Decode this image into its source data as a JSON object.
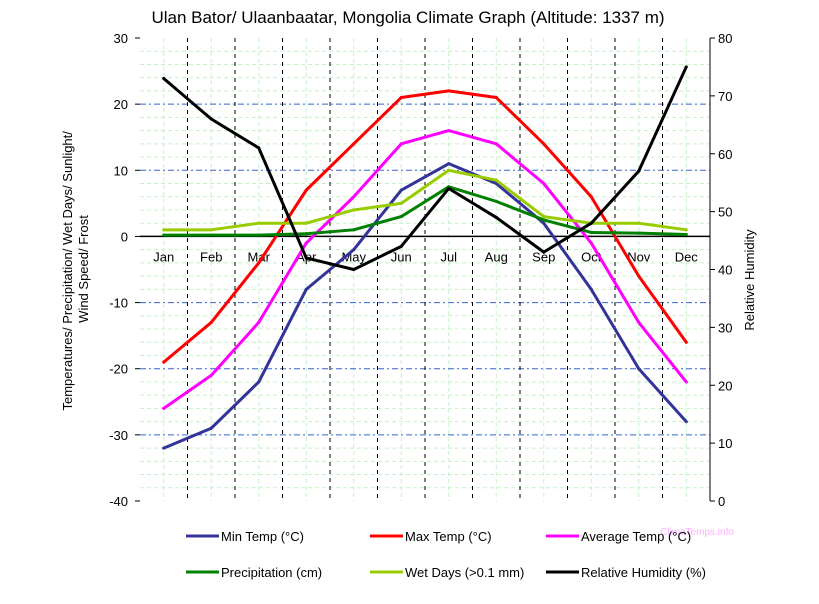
{
  "chart_data": {
    "type": "line",
    "title": "Ulan Bator/ Ulaanbaatar, Mongolia Climate Graph (Altitude: 1337 m)",
    "ylabel_left": "Temperatures/ Precipitation/ Wet Days/ Sunlight/ Wind Speed/ Frost",
    "ylabel_right": "Relative Humidity",
    "watermark": "ClimaTemps.info",
    "categories": [
      "Jan",
      "Feb",
      "Mar",
      "Apr",
      "May",
      "Jun",
      "Jul",
      "Aug",
      "Sep",
      "Oct",
      "Nov",
      "Dec"
    ],
    "y_left": {
      "min": -40,
      "max": 30,
      "step": 10,
      "ticks": [
        "30",
        "20",
        "10",
        "0",
        "-10",
        "-20",
        "-30",
        "-40"
      ]
    },
    "y_right": {
      "min": 0,
      "max": 80,
      "step": 10,
      "ticks": [
        "80",
        "70",
        "60",
        "50",
        "40",
        "30",
        "20",
        "10",
        "0"
      ]
    },
    "grid": true,
    "legend_position": "bottom",
    "series": [
      {
        "name": "Min Temp (°C)",
        "axis": "left",
        "color": "#333399",
        "values": [
          -32,
          -29,
          -22,
          -8,
          -2,
          7,
          11,
          8,
          2,
          -8,
          -20,
          -28
        ]
      },
      {
        "name": "Max Temp (°C)",
        "axis": "left",
        "color": "#ff0000",
        "values": [
          -19,
          -13,
          -4,
          7,
          14,
          21,
          22,
          21,
          14,
          6,
          -6,
          -16
        ]
      },
      {
        "name": "Average Temp (°C)",
        "axis": "left",
        "color": "#ff00ff",
        "values": [
          -26,
          -21,
          -13,
          -1,
          6,
          14,
          16,
          14,
          8,
          -1,
          -13,
          -22
        ]
      },
      {
        "name": "Precipitation (cm)",
        "axis": "left",
        "color": "#008000",
        "values": [
          0.2,
          0.2,
          0.2,
          0.4,
          1,
          3,
          7.5,
          5.3,
          2.5,
          0.6,
          0.5,
          0.3
        ]
      },
      {
        "name": "Wet Days (>0.1 mm)",
        "axis": "left",
        "color": "#99cc00",
        "values": [
          1,
          1,
          2,
          2,
          4,
          5,
          10,
          8.5,
          3,
          2,
          2,
          1
        ]
      },
      {
        "name": "Relative Humidity (%)",
        "axis": "right",
        "color": "#000000",
        "values": [
          73,
          66,
          61,
          42,
          40,
          44,
          54,
          49,
          43,
          48,
          57,
          75
        ]
      }
    ]
  }
}
